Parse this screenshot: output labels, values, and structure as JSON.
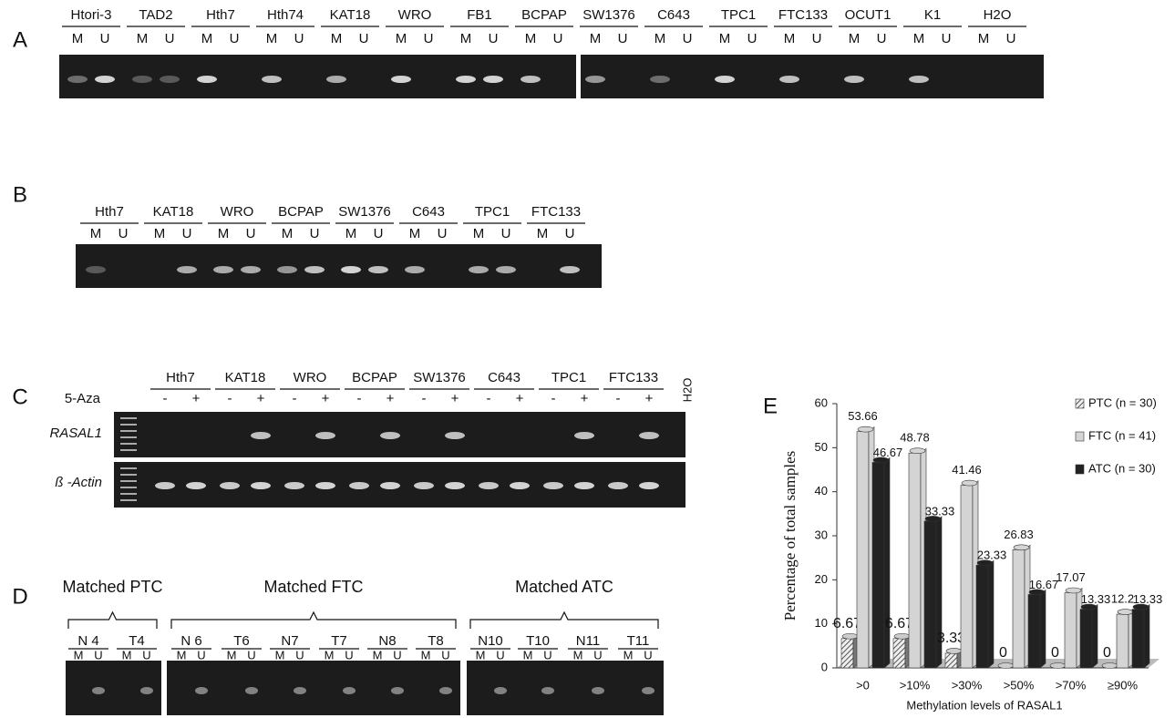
{
  "panel_A": {
    "letter": "A",
    "lanes": [
      "M",
      "U"
    ],
    "samples": [
      "Htori-3",
      "TAD2",
      "Hth7",
      "Hth74",
      "KAT18",
      "WRO",
      "FB1",
      "BCPAP",
      "SW1376",
      "C643",
      "TPC1",
      "FTC133",
      "OCUT1",
      "K1",
      "H2O"
    ]
  },
  "panel_B": {
    "letter": "B",
    "lanes": [
      "M",
      "U"
    ],
    "samples": [
      "Hth7",
      "KAT18",
      "WRO",
      "BCPAP",
      "SW1376",
      "C643",
      "TPC1",
      "FTC133"
    ]
  },
  "panel_C": {
    "letter": "C",
    "treatment": "5-Aza",
    "lanes": [
      "-",
      "+"
    ],
    "control": "H2O",
    "genes": [
      "RASAL1",
      "ß -Actin"
    ],
    "samples": [
      "Hth7",
      "KAT18",
      "WRO",
      "BCPAP",
      "SW1376",
      "C643",
      "TPC1",
      "FTC133"
    ]
  },
  "panel_D": {
    "letter": "D",
    "lanes": [
      "M",
      "U"
    ],
    "groups": [
      {
        "label": "Matched PTC",
        "samples": [
          "N 4",
          "T4"
        ]
      },
      {
        "label": "Matched  FTC",
        "samples": [
          "N 6",
          "T6",
          "N7",
          "T7",
          "N8",
          "T8"
        ]
      },
      {
        "label": "Matched  ATC",
        "samples": [
          "N10",
          "T10",
          "N11",
          "T11"
        ]
      }
    ]
  },
  "chart_data": {
    "type": "bar",
    "panel_letter": "E",
    "y_label": "Percentage of total samples",
    "x_label": "Methylation levels of RASAL1",
    "categories": [
      ">0",
      ">10%",
      ">30%",
      ">50%",
      ">70%",
      "≥90%"
    ],
    "series": [
      {
        "name": "PTC (n = 30)",
        "color": "#999999",
        "hatch": true,
        "values": [
          6.67,
          6.67,
          3.33,
          0,
          0,
          0
        ]
      },
      {
        "name": "FTC (n = 41)",
        "color": "#d4d4d4",
        "values": [
          53.66,
          48.78,
          41.46,
          26.83,
          17.07,
          12.2
        ]
      },
      {
        "name": "ATC (n = 30)",
        "color": "#222222",
        "values": [
          46.67,
          33.33,
          23.33,
          16.67,
          13.33,
          13.33
        ]
      }
    ],
    "ylim": [
      0,
      60
    ],
    "yticks": [
      0,
      10,
      20,
      30,
      40,
      50,
      60
    ],
    "legend": "top-right"
  }
}
